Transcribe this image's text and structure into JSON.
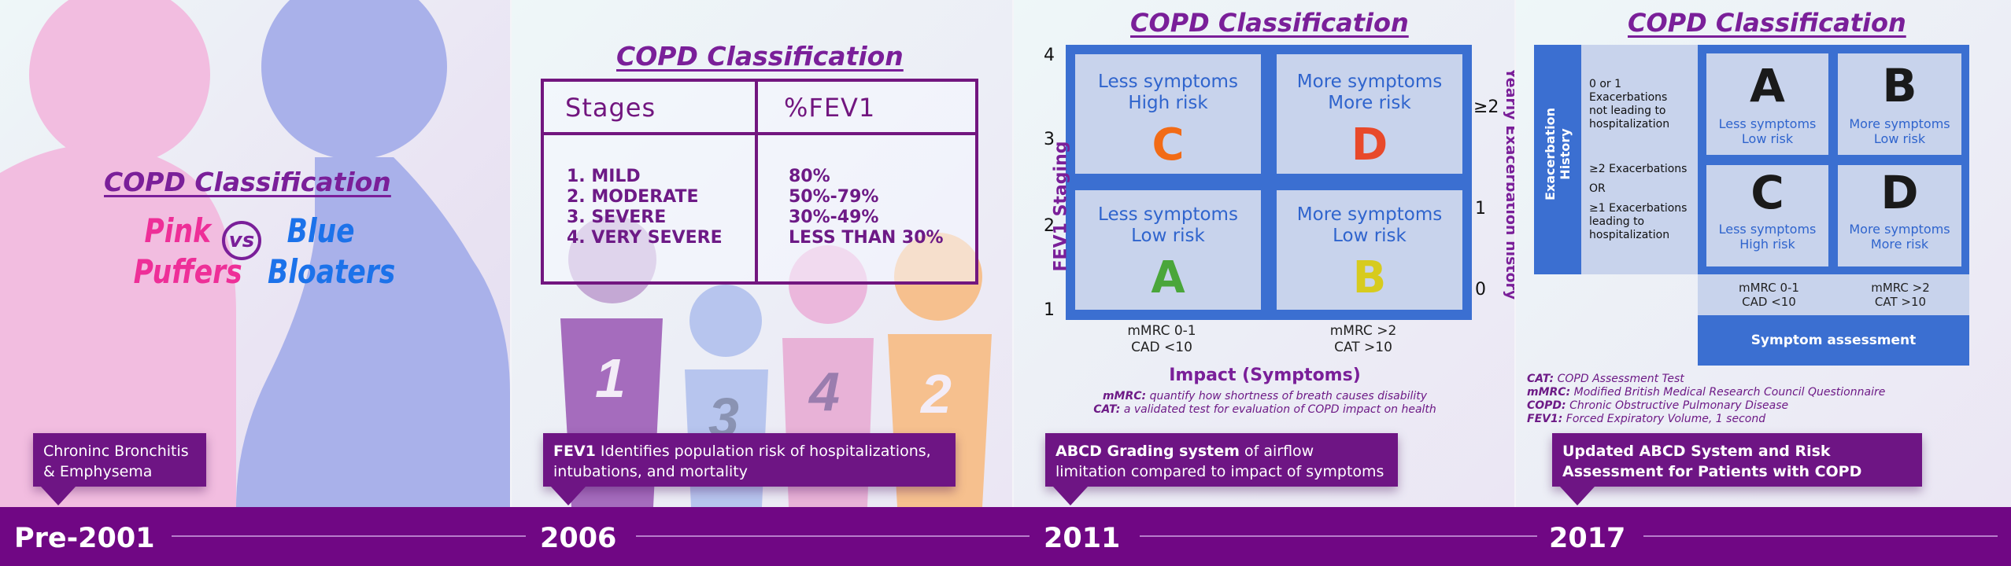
{
  "colors": {
    "purple": "#700784",
    "callout": "#6e1584",
    "pink": "#ee2f98",
    "blue": "#1c72ea",
    "grid_blue": "#3b6fd1",
    "cell_fill": "#c8d3ec"
  },
  "panel1": {
    "title": "COPD Classification",
    "pink_line1": "Pink",
    "pink_line2": "Puffers",
    "vs": "vs",
    "blue_line1": "Blue",
    "blue_line2": "Bloaters",
    "callout": "Chroninc Bronchitis & Emphysema"
  },
  "panel2": {
    "title": "COPD Classification",
    "col1": "Stages",
    "col2": "%FEV1",
    "stages": [
      "1. MILD",
      "2. MODERATE",
      "3. SEVERE",
      "4. VERY SEVERE"
    ],
    "fev1": [
      "80%",
      "50%-79%",
      "30%-49%",
      "LESS THAN 30%"
    ],
    "figure_numbers": [
      "1",
      "3",
      "4",
      "2"
    ],
    "callout_bold": "FEV1",
    "callout_rest": " Identifies population risk of hospitalizations, intubations, and mortality"
  },
  "panel3": {
    "title": "COPD Classification",
    "cells": [
      {
        "line1": "Less symptoms",
        "line2": "High risk",
        "letter": "C",
        "color": "#f26b16"
      },
      {
        "line1": "More symptoms",
        "line2": "More risk",
        "letter": "D",
        "color": "#e8492a"
      },
      {
        "line1": "Less symptoms",
        "line2": "Low risk",
        "letter": "A",
        "color": "#4aa63a"
      },
      {
        "line1": "More symptoms",
        "line2": "Low risk",
        "letter": "B",
        "color": "#d7cb1e"
      }
    ],
    "left_ticks": [
      "4",
      "3",
      "2",
      "1"
    ],
    "right_ticks": [
      "≥2",
      "1",
      "0"
    ],
    "left_axis": "FEV1 Staging",
    "right_axis": "Yearly Exacerbation history",
    "bottom_left": [
      "mMRC 0-1",
      "CAD <10"
    ],
    "bottom_right": [
      "mMRC >2",
      "CAT >10"
    ],
    "x_axis": "Impact (Symptoms)",
    "note1_bold": "mMRC:",
    "note1": " quantify how shortness of breath causes disability",
    "note2_bold": "CAT:",
    "note2": " a validated test for evaluation of COPD impact on health",
    "callout_bold": "ABCD Grading system",
    "callout_rest": " of airflow limitation compared to impact of symptoms"
  },
  "panel4": {
    "title": "COPD Classification",
    "side_label": "Exacerbation History",
    "row1": [
      "0 or 1",
      "Exacerbations",
      "not leading to",
      "hospitalization"
    ],
    "row2a": "≥2 Exacerbations",
    "row2or": "OR",
    "row2b": [
      "≥1 Exacerbations",
      "leading to",
      "hospitalization"
    ],
    "cells": [
      {
        "letter": "A",
        "line1": "Less symptoms",
        "line2": "Low risk"
      },
      {
        "letter": "B",
        "line1": "More symptoms",
        "line2": "Low risk"
      },
      {
        "letter": "C",
        "line1": "Less symptoms",
        "line2": "High risk"
      },
      {
        "letter": "D",
        "line1": "More symptoms",
        "line2": "More risk"
      }
    ],
    "bottom_left": [
      "mMRC 0-1",
      "CAD <10"
    ],
    "bottom_right": [
      "mMRC >2",
      "CAT >10"
    ],
    "symptom_bar": "Symptom assessment",
    "abbr": [
      {
        "k": "CAT:",
        "v": " COPD Assessment Test"
      },
      {
        "k": "mMRC:",
        "v": " Modified British Medical Research Council Questionnaire"
      },
      {
        "k": "COPD:",
        "v": " Chronic Obstructive Pulmonary Disease"
      },
      {
        "k": "FEV1:",
        "v": " Forced Expiratory Volume, 1 second"
      }
    ],
    "callout": "Updated ABCD System and Risk Assessment for Patients with COPD"
  },
  "timeline": {
    "years": [
      "Pre-2001",
      "2006",
      "2011",
      "2017"
    ]
  }
}
